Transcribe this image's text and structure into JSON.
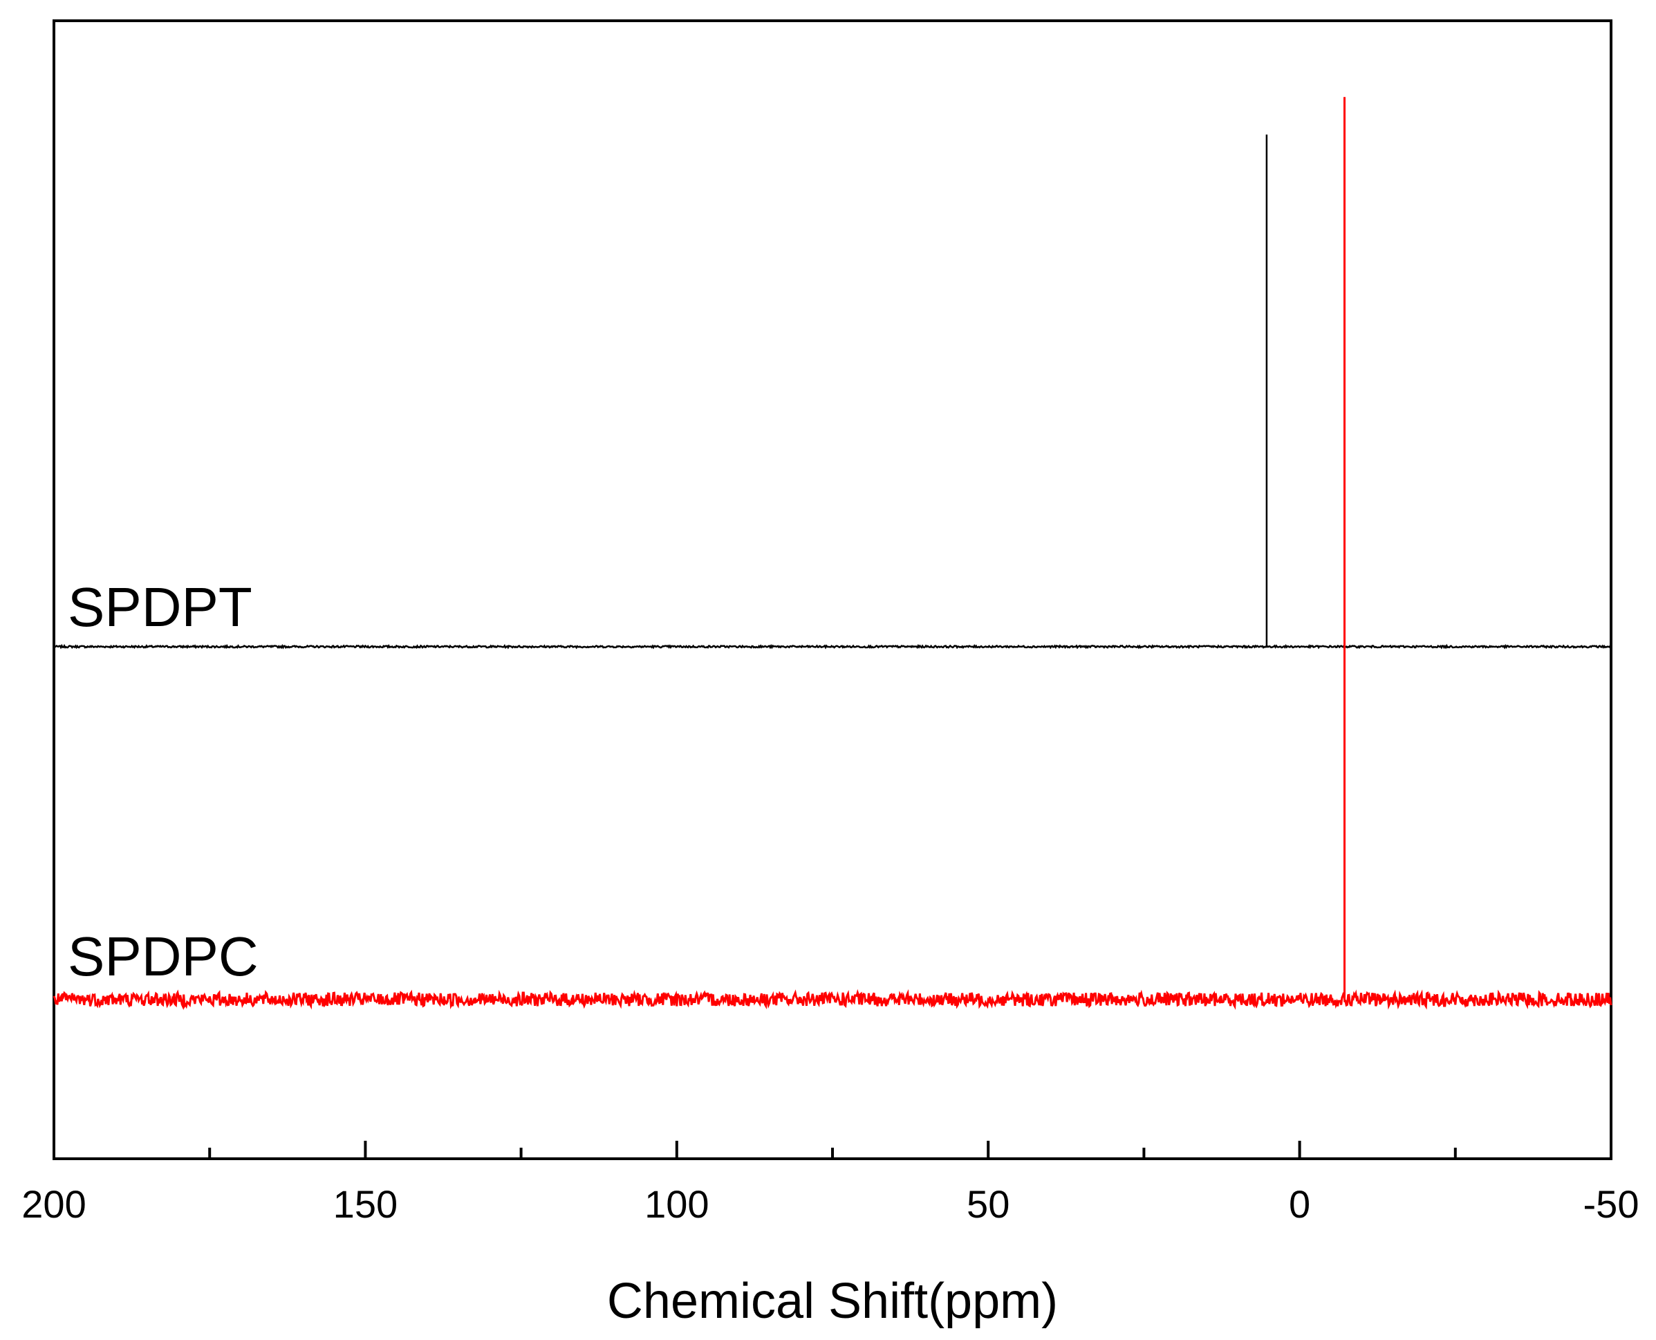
{
  "chart_data": {
    "type": "line",
    "title": "",
    "xlabel": "Chemical Shift(ppm)",
    "ylabel": "",
    "xlim": [
      200,
      -50
    ],
    "x_reversed": true,
    "x_ticks": [
      200,
      150,
      100,
      50,
      0,
      -50
    ],
    "x_tick_labels": [
      "200",
      "150",
      "100",
      "50",
      "0",
      "-50"
    ],
    "x_minor_ticks": [
      175,
      125,
      75,
      25,
      -25
    ],
    "y_ticks": [],
    "ylim": [
      0,
      1
    ],
    "grid": false,
    "series": [
      {
        "name": "SPDPT",
        "color": "#000000",
        "baseline": 0.45,
        "noise": 0.0008,
        "peaks": [
          {
            "x": 5.3,
            "y": 0.9
          }
        ]
      },
      {
        "name": "SPDPC",
        "color": "#ff0000",
        "baseline": 0.14,
        "noise": 0.006,
        "peaks": [
          {
            "x": -7.2,
            "y": 0.933
          }
        ]
      }
    ]
  }
}
